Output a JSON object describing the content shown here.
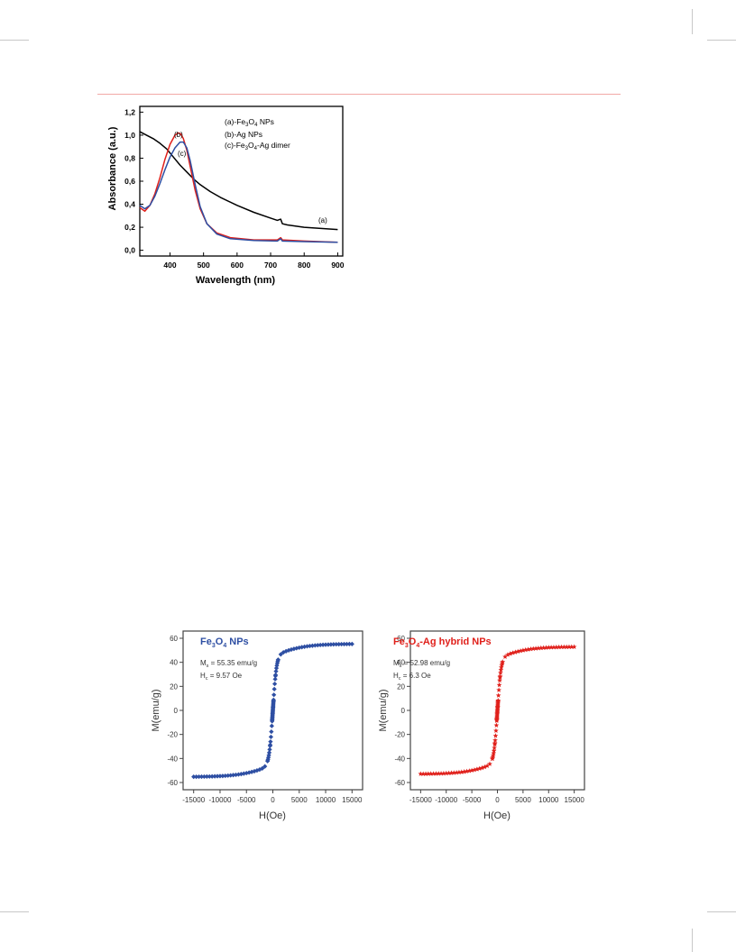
{
  "chart_data": [
    {
      "type": "line",
      "xlabel": "Wavelength (nm)",
      "ylabel": "Absorbance (a.u.)",
      "xlim": [
        310,
        915
      ],
      "ylim": [
        -0.05,
        1.25
      ],
      "xticks": [
        400,
        500,
        600,
        700,
        800,
        900
      ],
      "yticks": [
        0.0,
        0.2,
        0.4,
        0.6,
        0.8,
        1.0,
        1.2
      ],
      "xtick_labels": [
        "400",
        "500",
        "600",
        "700",
        "800",
        "900"
      ],
      "ytick_labels": [
        "0,0",
        "0,2",
        "0,4",
        "0,6",
        "0,8",
        "1,0",
        "1,2"
      ],
      "legend_placement": "top-right",
      "legend": [
        {
          "prefix": "(a)-Fe",
          "sub1": "3",
          "mid": "O",
          "sub2": "4",
          "suffix": " NPs"
        },
        {
          "prefix": "(b)-Ag NPs",
          "sub1": "",
          "mid": "",
          "sub2": "",
          "suffix": ""
        },
        {
          "prefix": "(c)-Fe",
          "sub1": "3",
          "mid": "O",
          "sub2": "4",
          "suffix": "-Ag dimer"
        }
      ],
      "annotations": [
        "(a)",
        "(b)",
        "(c)"
      ],
      "series": [
        {
          "color": "#000000",
          "x": [
            310,
            330,
            350,
            370,
            390,
            410,
            430,
            450,
            470,
            490,
            520,
            550,
            600,
            650,
            700,
            720,
            730,
            735,
            750,
            800,
            850,
            900
          ],
          "y": [
            1.03,
            1.0,
            0.97,
            0.93,
            0.88,
            0.81,
            0.74,
            0.68,
            0.62,
            0.57,
            0.51,
            0.46,
            0.39,
            0.33,
            0.28,
            0.26,
            0.27,
            0.23,
            0.22,
            0.2,
            0.19,
            0.18
          ]
        },
        {
          "color": "#e0201b",
          "x": [
            310,
            325,
            340,
            355,
            370,
            385,
            400,
            415,
            425,
            432,
            440,
            450,
            460,
            475,
            490,
            510,
            540,
            580,
            650,
            720,
            730,
            735,
            800,
            900
          ],
          "y": [
            0.37,
            0.34,
            0.39,
            0.49,
            0.63,
            0.79,
            0.92,
            1.0,
            1.02,
            1.01,
            0.97,
            0.87,
            0.73,
            0.52,
            0.36,
            0.23,
            0.15,
            0.11,
            0.09,
            0.09,
            0.11,
            0.09,
            0.08,
            0.07
          ]
        },
        {
          "color": "#2e4fa3",
          "x": [
            310,
            325,
            340,
            355,
            370,
            385,
            400,
            415,
            430,
            440,
            450,
            460,
            475,
            490,
            510,
            540,
            580,
            650,
            720,
            730,
            735,
            800,
            900
          ],
          "y": [
            0.39,
            0.36,
            0.39,
            0.47,
            0.58,
            0.7,
            0.81,
            0.89,
            0.94,
            0.94,
            0.89,
            0.78,
            0.57,
            0.38,
            0.23,
            0.14,
            0.1,
            0.085,
            0.08,
            0.1,
            0.08,
            0.075,
            0.07
          ]
        }
      ]
    },
    {
      "type": "scatter",
      "title_prefix": "Fe",
      "title_sub1": "3",
      "title_mid": "O",
      "title_sub2": "4",
      "title_suffix": " NPs",
      "ms_label": "M",
      "ms_sub": "s",
      "ms_value": " = 55.35 emu/g",
      "hc_label": "H",
      "hc_sub": "c",
      "hc_value": " = 9.57 Oe",
      "xlabel": "H(Oe)",
      "ylabel": "M(emu/g)",
      "xlim": [
        -17000,
        17000
      ],
      "ylim": [
        -66,
        66
      ],
      "xticks": [
        -15000,
        -10000,
        -5000,
        0,
        5000,
        10000,
        15000
      ],
      "yticks": [
        -60,
        -40,
        -20,
        0,
        20,
        40,
        60
      ],
      "xtick_labels": [
        "-15000",
        "-10000",
        "-5000",
        "0",
        "5000",
        "10000",
        "15000"
      ],
      "ytick_labels": [
        "-60",
        "-40",
        "-20",
        "0",
        "20",
        "40",
        "60"
      ],
      "color": "#2e4fa3",
      "marker": "diamond",
      "ms": 55.35
    },
    {
      "type": "scatter",
      "title_prefix": "Fe",
      "title_sub1": "3",
      "title_mid": "O",
      "title_sub2": "4",
      "title_suffix": "-Ag hybrid NPs",
      "ms_label": "M",
      "ms_sub": "s",
      "ms_value": " = 52.98 emu/g",
      "hc_label": "H",
      "hc_sub": "c",
      "hc_value": " = 6.3 Oe",
      "xlabel": "H(Oe)",
      "ylabel": "M(emu/g)",
      "xlim": [
        -17000,
        17000
      ],
      "ylim": [
        -66,
        66
      ],
      "xticks": [
        -15000,
        -10000,
        -5000,
        0,
        5000,
        10000,
        15000
      ],
      "yticks": [
        -60,
        -40,
        -20,
        0,
        20,
        40,
        60
      ],
      "xtick_labels": [
        "-15000",
        "-10000",
        "-5000",
        "0",
        "5000",
        "10000",
        "15000"
      ],
      "ytick_labels": [
        "-60",
        "-40",
        "-20",
        "0",
        "20",
        "40",
        "60"
      ],
      "color": "#e0201b",
      "marker": "star",
      "ms": 52.98
    }
  ]
}
